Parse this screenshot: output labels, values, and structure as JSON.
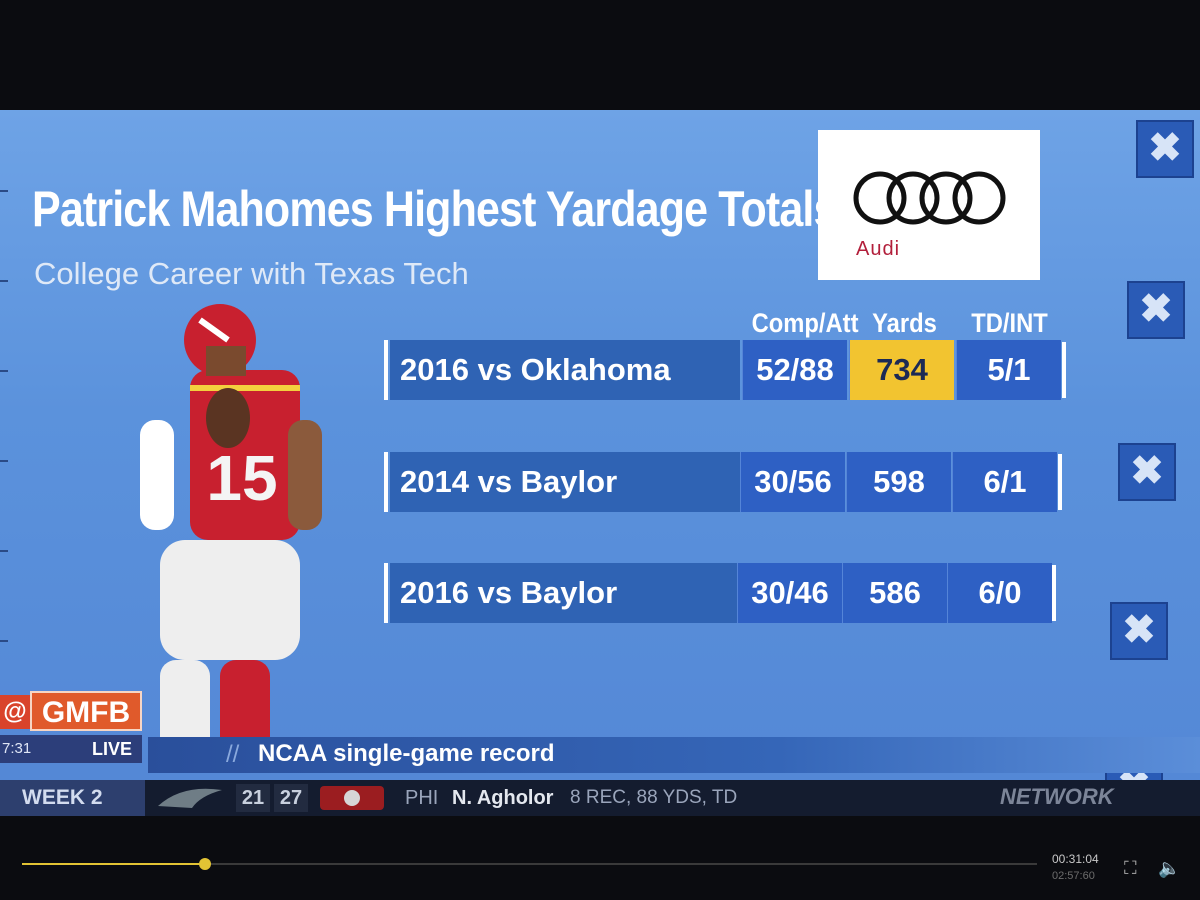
{
  "title": "Patrick Mahomes Highest Yardage Totals",
  "subtitle": "College Career with Texas Tech",
  "sponsor": {
    "name": "Audi",
    "brand_color": "#b21f3b"
  },
  "columns": [
    "Comp/Att",
    "Yards",
    "TD/INT"
  ],
  "rows": [
    {
      "game": "2016 vs Oklahoma",
      "comp_att": "52/88",
      "yards": "734",
      "td_int": "5/1",
      "highlight": true
    },
    {
      "game": "2014 vs Baylor",
      "comp_att": "30/56",
      "yards": "598",
      "td_int": "6/1",
      "highlight": false
    },
    {
      "game": "2016 vs Baylor",
      "comp_att": "30/46",
      "yards": "586",
      "td_int": "6/0",
      "highlight": false
    }
  ],
  "note": "NCAA single-game record",
  "bug": {
    "handle": "@",
    "show": "GMFB",
    "clock": "7:31",
    "live": "LIVE"
  },
  "ticker": {
    "week": "WEEK 2",
    "away_score": "21",
    "home_score": "27",
    "team": "PHI",
    "player": "N. Agholor",
    "stat": "8 REC, 88 YDS, TD",
    "network": "NETWORK"
  },
  "player_jersey_number": "15",
  "video": {
    "elapsed": "00:31:04",
    "duration": "02:57:60",
    "progress": 0.18
  },
  "colors": {
    "panel_bg": "#5b92dc",
    "cell_bg": "#2e60c4",
    "highlight": "#f2c430",
    "accent": "#e2c334"
  }
}
